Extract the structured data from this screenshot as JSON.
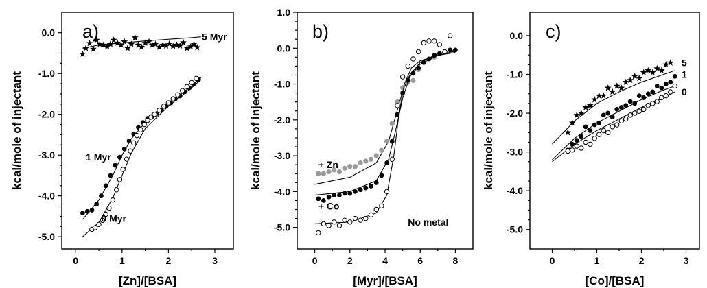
{
  "chart_data": [
    {
      "panel_label": "a)",
      "type": "scatter",
      "xlabel": "[Zn]/[BSA]",
      "ylabel": "kcal/mole of injectant",
      "xlim": [
        -0.3,
        3.4
      ],
      "ylim": [
        -5.3,
        0.5
      ],
      "xticks": [
        0,
        1,
        2,
        3
      ],
      "xtick_labels": [
        "0",
        "1",
        "2",
        "3"
      ],
      "yticks": [
        0,
        -1,
        -2,
        -3,
        -4,
        -5
      ],
      "ytick_labels": [
        "0.0",
        "-1.0",
        "-2.0",
        "-3.0",
        "-4.0",
        "-5.0"
      ],
      "series": [
        {
          "name": "5 Myr",
          "marker": "star",
          "label_at": [
            2.72,
            -0.1
          ],
          "x": [
            0.15,
            0.22,
            0.3,
            0.38,
            0.45,
            0.52,
            0.6,
            0.68,
            0.75,
            0.82,
            0.9,
            0.98,
            1.05,
            1.12,
            1.2,
            1.28,
            1.35,
            1.42,
            1.5,
            1.58,
            1.65,
            1.72,
            1.8,
            1.88,
            1.95,
            2.02,
            2.1,
            2.18,
            2.25,
            2.32,
            2.4,
            2.48,
            2.55,
            2.62
          ],
          "y": [
            -0.52,
            -0.38,
            -0.26,
            -0.4,
            -0.18,
            -0.28,
            -0.3,
            -0.34,
            -0.28,
            -0.18,
            -0.25,
            -0.3,
            -0.22,
            -0.38,
            -0.28,
            -0.12,
            -0.3,
            -0.35,
            -0.25,
            -0.22,
            -0.3,
            -0.28,
            -0.35,
            -0.3,
            -0.32,
            -0.27,
            -0.33,
            -0.3,
            -0.32,
            -0.24,
            -0.38,
            -0.34,
            -0.28,
            -0.36
          ],
          "fit": {
            "x": [
              0.15,
              0.5,
              1.0,
              1.5,
              2.0,
              2.5,
              2.7
            ],
            "y": [
              -0.38,
              -0.3,
              -0.25,
              -0.2,
              -0.16,
              -0.12,
              -0.1
            ]
          }
        },
        {
          "name": "1 Myr",
          "marker": "filled-circle",
          "label_at": [
            0.22,
            -3.05
          ],
          "x": [
            0.15,
            0.25,
            0.35,
            0.45,
            0.55,
            0.65,
            0.75,
            0.85,
            0.95,
            1.05,
            1.15,
            1.25,
            1.35,
            1.45,
            1.55,
            1.65,
            1.75,
            1.85,
            1.95,
            2.05,
            2.15,
            2.25,
            2.35,
            2.45,
            2.55,
            2.65
          ],
          "y": [
            -4.42,
            -4.38,
            -4.35,
            -4.2,
            -4.0,
            -3.75,
            -3.5,
            -3.25,
            -3.05,
            -2.85,
            -2.65,
            -2.48,
            -2.32,
            -2.2,
            -2.1,
            -2.05,
            -1.98,
            -1.9,
            -1.8,
            -1.72,
            -1.62,
            -1.55,
            -1.45,
            -1.35,
            -1.25,
            -1.15
          ],
          "fit": {
            "x": [
              0.15,
              0.5,
              0.8,
              1.0,
              1.2,
              1.5,
              2.0,
              2.5,
              2.7
            ],
            "y": [
              -4.58,
              -4.1,
              -3.5,
              -3.0,
              -2.6,
              -2.2,
              -1.75,
              -1.3,
              -1.1
            ]
          }
        },
        {
          "name": "0 Myr",
          "marker": "open-circle",
          "label_at": [
            0.55,
            -4.55
          ],
          "x": [
            0.35,
            0.42,
            0.5,
            0.58,
            0.65,
            0.72,
            0.8,
            0.88,
            0.95,
            1.02,
            1.1,
            1.18,
            1.25,
            1.32,
            1.4,
            1.48,
            1.55,
            1.62,
            1.7,
            1.8,
            1.9,
            2.0,
            2.1,
            2.2,
            2.3,
            2.4,
            2.5,
            2.6
          ],
          "y": [
            -4.82,
            -4.78,
            -4.7,
            -4.6,
            -4.45,
            -4.3,
            -4.1,
            -3.85,
            -3.6,
            -3.35,
            -3.1,
            -2.9,
            -2.7,
            -2.52,
            -2.38,
            -2.25,
            -2.15,
            -2.07,
            -2.0,
            -1.9,
            -1.8,
            -1.72,
            -1.62,
            -1.52,
            -1.42,
            -1.32,
            -1.22,
            -1.12
          ],
          "fit": {
            "x": [
              0.15,
              0.5,
              0.8,
              1.0,
              1.2,
              1.5,
              2.0,
              2.5,
              2.7
            ],
            "y": [
              -5.0,
              -4.65,
              -4.05,
              -3.5,
              -2.95,
              -2.35,
              -1.8,
              -1.35,
              -1.15
            ]
          }
        }
      ]
    },
    {
      "panel_label": "b)",
      "type": "scatter",
      "xlabel": "[Myr]/[BSA]",
      "ylabel": "kcal/mole of injectant",
      "xlim": [
        -1.0,
        9.0
      ],
      "ylim": [
        -5.6,
        1.0
      ],
      "xticks": [
        0,
        2,
        4,
        6,
        8
      ],
      "xtick_labels": [
        "0",
        "2",
        "4",
        "6",
        "8"
      ],
      "yticks": [
        1,
        0,
        -1,
        -2,
        -3,
        -4,
        -5
      ],
      "ytick_labels": [
        "1.0",
        "0.0",
        "-1.0",
        "-2.0",
        "-3.0",
        "-4.0",
        "-5.0"
      ],
      "series": [
        {
          "name": "+ Zn",
          "marker": "gray-circle",
          "label_at": [
            0.2,
            -3.25
          ],
          "x": [
            0.2,
            0.5,
            0.8,
            1.1,
            1.4,
            1.7,
            2.0,
            2.3,
            2.6,
            2.9,
            3.2,
            3.5,
            3.8,
            4.1,
            4.4,
            4.7,
            5.0,
            5.3,
            5.6,
            5.9,
            6.2,
            6.5,
            6.8,
            7.1,
            7.4,
            7.7
          ],
          "y": [
            -3.5,
            -3.5,
            -3.45,
            -3.4,
            -3.45,
            -3.35,
            -3.3,
            -3.3,
            -3.2,
            -3.15,
            -3.1,
            -3.0,
            -2.85,
            -2.6,
            -2.1,
            -1.5,
            -1.1,
            -0.95,
            -0.9,
            -0.6,
            -0.4,
            -0.3,
            -0.25,
            -0.15,
            -0.1,
            -0.05
          ],
          "fit": {
            "x": [
              0.0,
              2.0,
              3.5,
              4.2,
              4.6,
              5.0,
              5.4,
              6.0,
              7.0,
              8.0
            ],
            "y": [
              -3.8,
              -3.6,
              -3.2,
              -2.6,
              -1.9,
              -1.2,
              -0.75,
              -0.4,
              -0.15,
              -0.05
            ]
          }
        },
        {
          "name": "+ Co",
          "marker": "filled-circle",
          "label_at": [
            0.2,
            -4.4
          ],
          "x": [
            0.2,
            0.5,
            0.8,
            1.1,
            1.4,
            1.7,
            2.0,
            2.3,
            2.6,
            2.9,
            3.2,
            3.5,
            3.8,
            4.1,
            4.4,
            4.7,
            5.0,
            5.3,
            5.6,
            5.9,
            6.2,
            6.5,
            6.8,
            7.1,
            7.4,
            7.7,
            8.0
          ],
          "y": [
            -4.2,
            -4.25,
            -4.15,
            -4.1,
            -4.1,
            -4.05,
            -4.05,
            -4.0,
            -3.95,
            -3.9,
            -3.85,
            -3.75,
            -3.55,
            -3.2,
            -2.6,
            -1.85,
            -1.25,
            -0.9,
            -0.7,
            -0.55,
            -0.4,
            -0.3,
            -0.2,
            -0.15,
            -0.1,
            -0.05,
            -0.05
          ],
          "fit": {
            "x": [
              0.0,
              2.0,
              3.5,
              4.2,
              4.6,
              5.0,
              5.4,
              6.0,
              7.0,
              8.0
            ],
            "y": [
              -4.1,
              -4.0,
              -3.7,
              -3.1,
              -2.3,
              -1.4,
              -0.8,
              -0.45,
              -0.2,
              -0.08
            ]
          }
        },
        {
          "name": "No metal",
          "marker": "open-circle",
          "label_at": [
            5.3,
            -4.85
          ],
          "x": [
            0.2,
            0.5,
            0.8,
            1.1,
            1.4,
            1.7,
            2.0,
            2.3,
            2.6,
            2.9,
            3.2,
            3.5,
            3.8,
            4.1,
            4.4,
            4.7,
            5.0,
            5.3,
            5.6,
            5.9,
            6.2,
            6.5,
            6.8,
            7.1,
            7.4,
            7.7
          ],
          "y": [
            -5.15,
            -4.9,
            -4.95,
            -4.85,
            -4.95,
            -4.8,
            -4.85,
            -4.75,
            -4.8,
            -4.75,
            -4.65,
            -4.5,
            -4.4,
            -4.0,
            -3.1,
            -1.6,
            -0.8,
            -0.5,
            -0.3,
            -0.1,
            0.15,
            0.2,
            0.2,
            0.1,
            -0.1,
            0.35
          ],
          "fit": {
            "x": [
              0.0,
              2.0,
              3.5,
              4.1,
              4.5,
              4.8,
              5.1,
              5.5,
              6.0,
              7.0,
              8.0
            ],
            "y": [
              -4.9,
              -4.85,
              -4.6,
              -4.1,
              -3.0,
              -1.8,
              -1.0,
              -0.55,
              -0.35,
              -0.2,
              -0.12
            ]
          }
        }
      ]
    },
    {
      "panel_label": "c)",
      "type": "scatter",
      "xlabel": "[Co]/[BSA]",
      "ylabel": "kcal/mole of injectant",
      "xlim": [
        -0.5,
        3.3
      ],
      "ylim": [
        -5.5,
        0.6
      ],
      "xticks": [
        0,
        1,
        2,
        3
      ],
      "xtick_labels": [
        "0",
        "1",
        "2",
        "3"
      ],
      "yticks": [
        0,
        -1,
        -2,
        -3,
        -4,
        -5
      ],
      "ytick_labels": [
        "0.0",
        "-1.0",
        "-2.0",
        "-3.0",
        "-4.0",
        "-5.0"
      ],
      "series": [
        {
          "name": "5",
          "marker": "star",
          "label_at": [
            2.9,
            -0.7
          ],
          "x": [
            0.35,
            0.45,
            0.55,
            0.65,
            0.75,
            0.85,
            0.95,
            1.05,
            1.15,
            1.25,
            1.35,
            1.45,
            1.55,
            1.65,
            1.75,
            1.85,
            1.95,
            2.05,
            2.15,
            2.25,
            2.35,
            2.45,
            2.55,
            2.65
          ],
          "y": [
            -2.5,
            -2.25,
            -2.05,
            -2.0,
            -1.85,
            -1.8,
            -1.65,
            -1.55,
            -1.55,
            -1.35,
            -1.45,
            -1.3,
            -1.35,
            -1.2,
            -1.15,
            -1.05,
            -1.1,
            -0.95,
            -0.9,
            -0.95,
            -0.85,
            -0.9,
            -0.75,
            -0.7
          ],
          "fit": {
            "x": [
              0.0,
              0.5,
              1.0,
              1.5,
              2.0,
              2.5,
              2.75
            ],
            "y": [
              -2.8,
              -2.2,
              -1.75,
              -1.45,
              -1.2,
              -1.0,
              -0.9
            ]
          }
        },
        {
          "name": "1",
          "marker": "filled-circle",
          "label_at": [
            2.9,
            -1.0
          ],
          "x": [
            0.35,
            0.45,
            0.55,
            0.65,
            0.75,
            0.85,
            0.95,
            1.05,
            1.15,
            1.25,
            1.35,
            1.45,
            1.55,
            1.65,
            1.75,
            1.85,
            1.95,
            2.05,
            2.15,
            2.25,
            2.35,
            2.45,
            2.55,
            2.65,
            2.75
          ],
          "y": [
            -2.95,
            -2.8,
            -2.7,
            -2.6,
            -2.35,
            -2.45,
            -2.3,
            -2.25,
            -2.05,
            -2.0,
            -2.1,
            -1.9,
            -1.85,
            -1.8,
            -1.7,
            -1.75,
            -1.55,
            -1.6,
            -1.5,
            -1.45,
            -1.3,
            -1.35,
            -1.25,
            -1.2,
            -1.05
          ],
          "fit": {
            "x": [
              0.0,
              0.5,
              1.0,
              1.5,
              2.0,
              2.5,
              2.75
            ],
            "y": [
              -3.2,
              -2.65,
              -2.25,
              -1.95,
              -1.65,
              -1.4,
              -1.3
            ]
          }
        },
        {
          "name": "0",
          "marker": "open-circle",
          "label_at": [
            2.9,
            -1.45
          ],
          "x": [
            0.35,
            0.45,
            0.55,
            0.65,
            0.75,
            0.85,
            0.95,
            1.05,
            1.15,
            1.25,
            1.35,
            1.45,
            1.55,
            1.65,
            1.75,
            1.85,
            1.95,
            2.05,
            2.15,
            2.25,
            2.35,
            2.45,
            2.55,
            2.65,
            2.75
          ],
          "y": [
            -2.98,
            -2.95,
            -2.85,
            -2.9,
            -2.75,
            -2.8,
            -2.65,
            -2.55,
            -2.45,
            -2.5,
            -2.35,
            -2.3,
            -2.2,
            -2.15,
            -2.05,
            -2.0,
            -1.95,
            -1.9,
            -1.8,
            -1.75,
            -1.7,
            -1.6,
            -1.55,
            -1.45,
            -1.3
          ],
          "fit": {
            "x": [
              0.0,
              0.5,
              1.0,
              1.5,
              2.0,
              2.5,
              2.75
            ],
            "y": [
              -3.25,
              -2.8,
              -2.45,
              -2.15,
              -1.85,
              -1.6,
              -1.45
            ]
          }
        }
      ]
    }
  ]
}
